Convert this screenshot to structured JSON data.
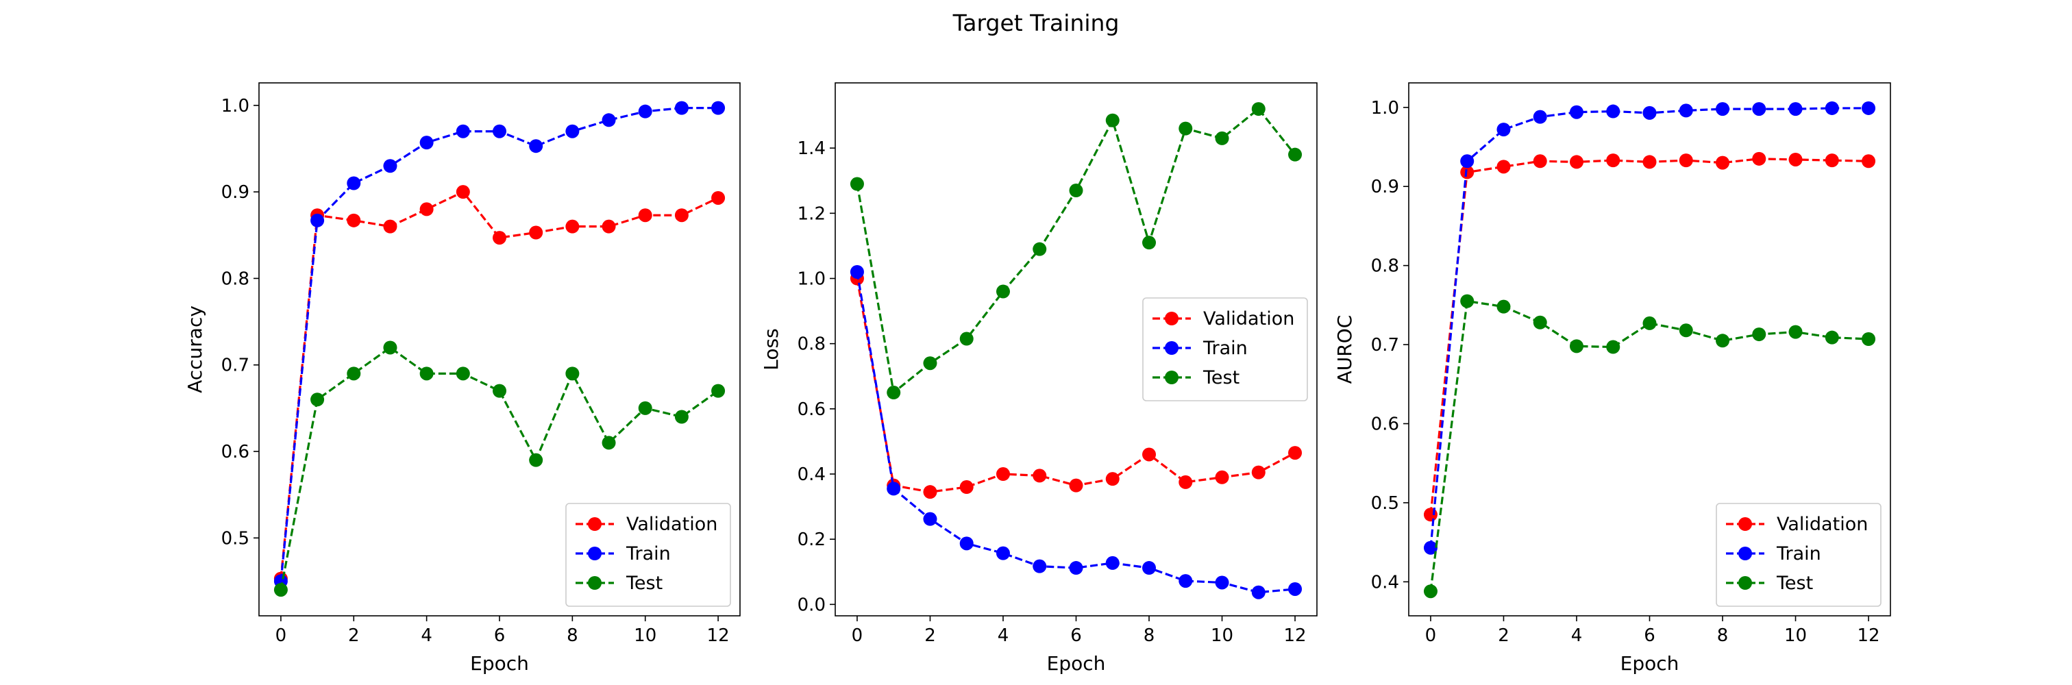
{
  "figure": {
    "title": "Target Training"
  },
  "chart_data": [
    {
      "type": "line",
      "title": "",
      "xlabel": "Epoch",
      "ylabel": "Accuracy",
      "x": [
        0,
        1,
        2,
        3,
        4,
        5,
        6,
        7,
        8,
        9,
        10,
        11,
        12
      ],
      "xlim": [
        -0.6,
        12.6
      ],
      "ylim": [
        0.41,
        1.026
      ],
      "xticks": [
        0,
        2,
        4,
        6,
        8,
        10,
        12
      ],
      "yticks": [
        0.5,
        0.6,
        0.7,
        0.8,
        0.9,
        1.0
      ],
      "ytick_decimals": 1,
      "legend_position": "lower right",
      "series": [
        {
          "name": "Validation",
          "color": "#ff0000",
          "values": [
            0.453,
            0.873,
            0.867,
            0.86,
            0.88,
            0.9,
            0.847,
            0.853,
            0.86,
            0.86,
            0.873,
            0.873,
            0.893
          ]
        },
        {
          "name": "Train",
          "color": "#0000ff",
          "values": [
            0.45,
            0.867,
            0.91,
            0.93,
            0.957,
            0.97,
            0.97,
            0.953,
            0.97,
            0.983,
            0.993,
            0.997,
            0.997
          ]
        },
        {
          "name": "Test",
          "color": "#008000",
          "values": [
            0.44,
            0.66,
            0.69,
            0.72,
            0.69,
            0.69,
            0.67,
            0.59,
            0.69,
            0.61,
            0.65,
            0.64,
            0.67
          ]
        }
      ]
    },
    {
      "type": "line",
      "title": "",
      "xlabel": "Epoch",
      "ylabel": "Loss",
      "x": [
        0,
        1,
        2,
        3,
        4,
        5,
        6,
        7,
        8,
        9,
        10,
        11,
        12
      ],
      "xlim": [
        -0.6,
        12.6
      ],
      "ylim": [
        -0.035,
        1.6
      ],
      "xticks": [
        0,
        2,
        4,
        6,
        8,
        10,
        12
      ],
      "yticks": [
        0.0,
        0.2,
        0.4,
        0.6,
        0.8,
        1.0,
        1.2,
        1.4
      ],
      "ytick_decimals": 1,
      "legend_position": "center right",
      "series": [
        {
          "name": "Validation",
          "color": "#ff0000",
          "values": [
            1.0,
            0.365,
            0.345,
            0.36,
            0.4,
            0.395,
            0.365,
            0.385,
            0.46,
            0.375,
            0.39,
            0.405,
            0.465
          ]
        },
        {
          "name": "Train",
          "color": "#0000ff",
          "values": [
            1.02,
            0.355,
            0.262,
            0.187,
            0.157,
            0.117,
            0.112,
            0.127,
            0.112,
            0.072,
            0.067,
            0.037,
            0.047
          ]
        },
        {
          "name": "Test",
          "color": "#008000",
          "values": [
            1.29,
            0.65,
            0.74,
            0.815,
            0.96,
            1.09,
            1.27,
            1.485,
            1.11,
            1.46,
            1.43,
            1.52,
            1.38
          ]
        }
      ]
    },
    {
      "type": "line",
      "title": "",
      "xlabel": "Epoch",
      "ylabel": "AUROC",
      "x": [
        0,
        1,
        2,
        3,
        4,
        5,
        6,
        7,
        8,
        9,
        10,
        11,
        12
      ],
      "xlim": [
        -0.6,
        12.6
      ],
      "ylim": [
        0.357,
        1.031
      ],
      "xticks": [
        0,
        2,
        4,
        6,
        8,
        10,
        12
      ],
      "yticks": [
        0.4,
        0.5,
        0.6,
        0.7,
        0.8,
        0.9,
        1.0
      ],
      "ytick_decimals": 1,
      "legend_position": "lower right",
      "series": [
        {
          "name": "Validation",
          "color": "#ff0000",
          "values": [
            0.485,
            0.918,
            0.925,
            0.932,
            0.931,
            0.933,
            0.931,
            0.933,
            0.93,
            0.935,
            0.934,
            0.933,
            0.932
          ]
        },
        {
          "name": "Train",
          "color": "#0000ff",
          "values": [
            0.443,
            0.932,
            0.972,
            0.988,
            0.994,
            0.995,
            0.993,
            0.996,
            0.998,
            0.998,
            0.998,
            0.999,
            0.999
          ]
        },
        {
          "name": "Test",
          "color": "#008000",
          "values": [
            0.388,
            0.755,
            0.748,
            0.728,
            0.698,
            0.697,
            0.727,
            0.718,
            0.705,
            0.713,
            0.716,
            0.709,
            0.707
          ]
        }
      ]
    }
  ]
}
